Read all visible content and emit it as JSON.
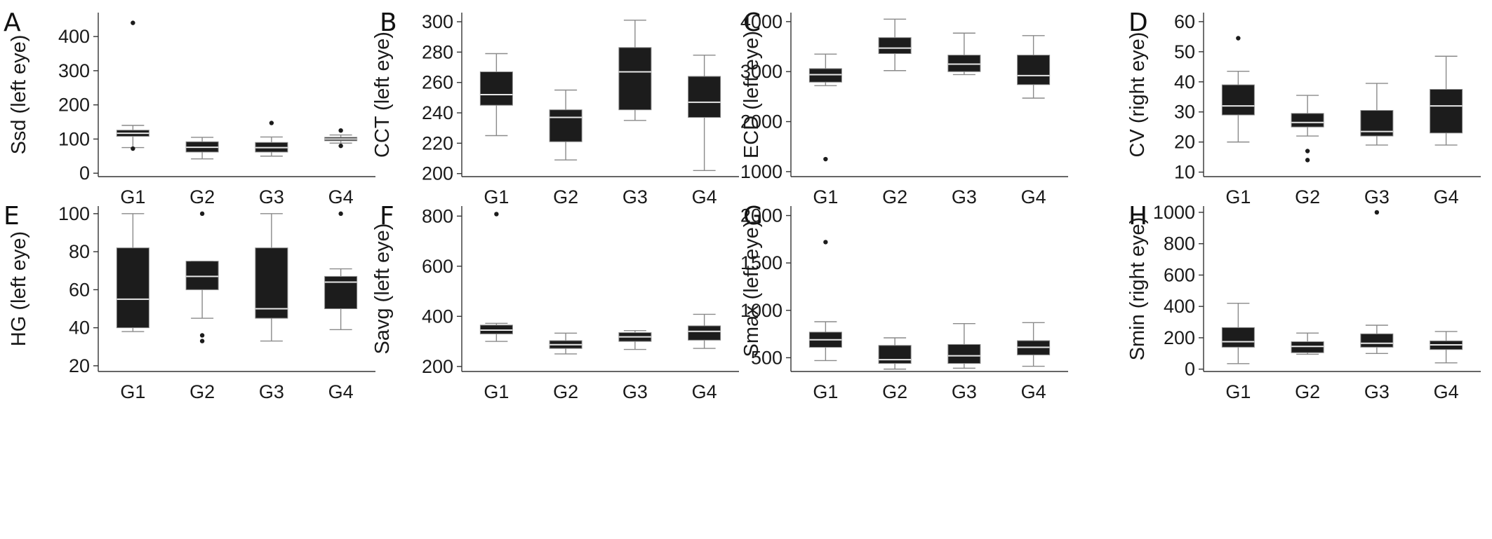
{
  "colors": {
    "box": "#1c1c1c",
    "median": "#e6e6e6",
    "whisker": "#8a8a8a",
    "axis": "#333333",
    "text": "#1a1a1a"
  },
  "chart_data": [
    {
      "type": "box",
      "panel": "A",
      "ylabel": "Ssd (left eye)",
      "categories": [
        "G1",
        "G2",
        "G3",
        "G4"
      ],
      "ylim": [
        -10,
        470
      ],
      "yticks": [
        0,
        100,
        200,
        300,
        400
      ],
      "boxes": [
        {
          "whislo": 75,
          "q1": 108,
          "med": 117,
          "q3": 126,
          "whishi": 140,
          "fliers": [
            440,
            72
          ]
        },
        {
          "whislo": 42,
          "q1": 62,
          "med": 76,
          "q3": 92,
          "whishi": 105,
          "fliers": []
        },
        {
          "whislo": 50,
          "q1": 62,
          "med": 75,
          "q3": 90,
          "whishi": 106,
          "fliers": [
            147
          ]
        },
        {
          "whislo": 88,
          "q1": 95,
          "med": 100,
          "q3": 105,
          "whishi": 112,
          "fliers": [
            125,
            80
          ]
        }
      ]
    },
    {
      "type": "box",
      "panel": "B",
      "ylabel": "CCT (left eye)",
      "categories": [
        "G1",
        "G2",
        "G3",
        "G4"
      ],
      "ylim": [
        198,
        306
      ],
      "yticks": [
        200,
        220,
        240,
        260,
        280,
        300
      ],
      "boxes": [
        {
          "whislo": 225,
          "q1": 245,
          "med": 252,
          "q3": 267,
          "whishi": 279,
          "fliers": []
        },
        {
          "whislo": 209,
          "q1": 221,
          "med": 237,
          "q3": 242,
          "whishi": 255,
          "fliers": []
        },
        {
          "whislo": 235,
          "q1": 242,
          "med": 267,
          "q3": 283,
          "whishi": 301,
          "fliers": []
        },
        {
          "whislo": 202,
          "q1": 237,
          "med": 247,
          "q3": 264,
          "whishi": 278,
          "fliers": []
        }
      ]
    },
    {
      "type": "box",
      "panel": "C",
      "ylabel": "ECD (left eye)",
      "categories": [
        "G1",
        "G2",
        "G3",
        "G4"
      ],
      "ylim": [
        900,
        4180
      ],
      "yticks": [
        1000,
        2000,
        3000,
        4000
      ],
      "boxes": [
        {
          "whislo": 2720,
          "q1": 2790,
          "med": 2940,
          "q3": 3060,
          "whishi": 3350,
          "fliers": [
            1250
          ]
        },
        {
          "whislo": 3020,
          "q1": 3360,
          "med": 3470,
          "q3": 3680,
          "whishi": 4050,
          "fliers": []
        },
        {
          "whislo": 2940,
          "q1": 3000,
          "med": 3150,
          "q3": 3330,
          "whishi": 3770,
          "fliers": []
        },
        {
          "whislo": 2470,
          "q1": 2740,
          "med": 2920,
          "q3": 3330,
          "whishi": 3720,
          "fliers": []
        }
      ]
    },
    {
      "type": "box",
      "panel": "D",
      "ylabel": "CV (right eye)",
      "categories": [
        "G1",
        "G2",
        "G3",
        "G4"
      ],
      "ylim": [
        8.5,
        63
      ],
      "yticks": [
        10,
        20,
        30,
        40,
        50,
        60
      ],
      "boxes": [
        {
          "whislo": 20,
          "q1": 29,
          "med": 32,
          "q3": 39,
          "whishi": 43.5,
          "fliers": [
            54.5
          ]
        },
        {
          "whislo": 22,
          "q1": 25,
          "med": 26.5,
          "q3": 29.5,
          "whishi": 35.5,
          "fliers": [
            17,
            14
          ]
        },
        {
          "whislo": 19,
          "q1": 22,
          "med": 23.5,
          "q3": 30.5,
          "whishi": 39.5,
          "fliers": []
        },
        {
          "whislo": 19,
          "q1": 23,
          "med": 32,
          "q3": 37.5,
          "whishi": 48.5,
          "fliers": []
        }
      ]
    },
    {
      "type": "box",
      "panel": "E",
      "ylabel": "HG (left eye)",
      "categories": [
        "G1",
        "G2",
        "G3",
        "G4"
      ],
      "ylim": [
        17,
        104
      ],
      "yticks": [
        20,
        40,
        60,
        80,
        100
      ],
      "boxes": [
        {
          "whislo": 38,
          "q1": 40,
          "med": 55,
          "q3": 82,
          "whishi": 100,
          "fliers": []
        },
        {
          "whislo": 45,
          "q1": 60,
          "med": 67,
          "q3": 75,
          "whishi": 75,
          "fliers": [
            100,
            36,
            33
          ]
        },
        {
          "whislo": 33,
          "q1": 45,
          "med": 50,
          "q3": 82,
          "whishi": 100,
          "fliers": []
        },
        {
          "whislo": 39,
          "q1": 50,
          "med": 64,
          "q3": 67,
          "whishi": 71,
          "fliers": [
            100
          ]
        }
      ]
    },
    {
      "type": "box",
      "panel": "F",
      "ylabel": "Savg (left eye)",
      "categories": [
        "G1",
        "G2",
        "G3",
        "G4"
      ],
      "ylim": [
        180,
        840
      ],
      "yticks": [
        200,
        400,
        600,
        800
      ],
      "boxes": [
        {
          "whislo": 300,
          "q1": 330,
          "med": 345,
          "q3": 365,
          "whishi": 372,
          "fliers": [
            808
          ]
        },
        {
          "whislo": 250,
          "q1": 272,
          "med": 287,
          "q3": 303,
          "whishi": 333,
          "fliers": []
        },
        {
          "whislo": 268,
          "q1": 300,
          "med": 318,
          "q3": 335,
          "whishi": 343,
          "fliers": []
        },
        {
          "whislo": 272,
          "q1": 305,
          "med": 340,
          "q3": 362,
          "whishi": 408,
          "fliers": []
        }
      ]
    },
    {
      "type": "box",
      "panel": "G",
      "ylabel": "Smax (left eye)",
      "categories": [
        "G1",
        "G2",
        "G3",
        "G4"
      ],
      "ylim": [
        355,
        2100
      ],
      "yticks": [
        500,
        1000,
        1500,
        2000
      ],
      "boxes": [
        {
          "whislo": 470,
          "q1": 610,
          "med": 690,
          "q3": 770,
          "whishi": 880,
          "fliers": [
            1720
          ]
        },
        {
          "whislo": 380,
          "q1": 440,
          "med": 480,
          "q3": 630,
          "whishi": 710,
          "fliers": []
        },
        {
          "whislo": 390,
          "q1": 440,
          "med": 520,
          "q3": 640,
          "whishi": 860,
          "fliers": []
        },
        {
          "whislo": 410,
          "q1": 530,
          "med": 610,
          "q3": 680,
          "whishi": 870,
          "fliers": []
        }
      ]
    },
    {
      "type": "box",
      "panel": "H",
      "ylabel": "Smin (right eye)",
      "categories": [
        "G1",
        "G2",
        "G3",
        "G4"
      ],
      "ylim": [
        -15,
        1040
      ],
      "yticks": [
        0,
        200,
        400,
        600,
        800,
        1000
      ],
      "boxes": [
        {
          "whislo": 35,
          "q1": 140,
          "med": 175,
          "q3": 265,
          "whishi": 420,
          "fliers": []
        },
        {
          "whislo": 95,
          "q1": 105,
          "med": 145,
          "q3": 175,
          "whishi": 230,
          "fliers": []
        },
        {
          "whislo": 100,
          "q1": 140,
          "med": 165,
          "q3": 225,
          "whishi": 280,
          "fliers": [
            1000
          ]
        },
        {
          "whislo": 40,
          "q1": 125,
          "med": 155,
          "q3": 180,
          "whishi": 240,
          "fliers": []
        }
      ]
    }
  ]
}
